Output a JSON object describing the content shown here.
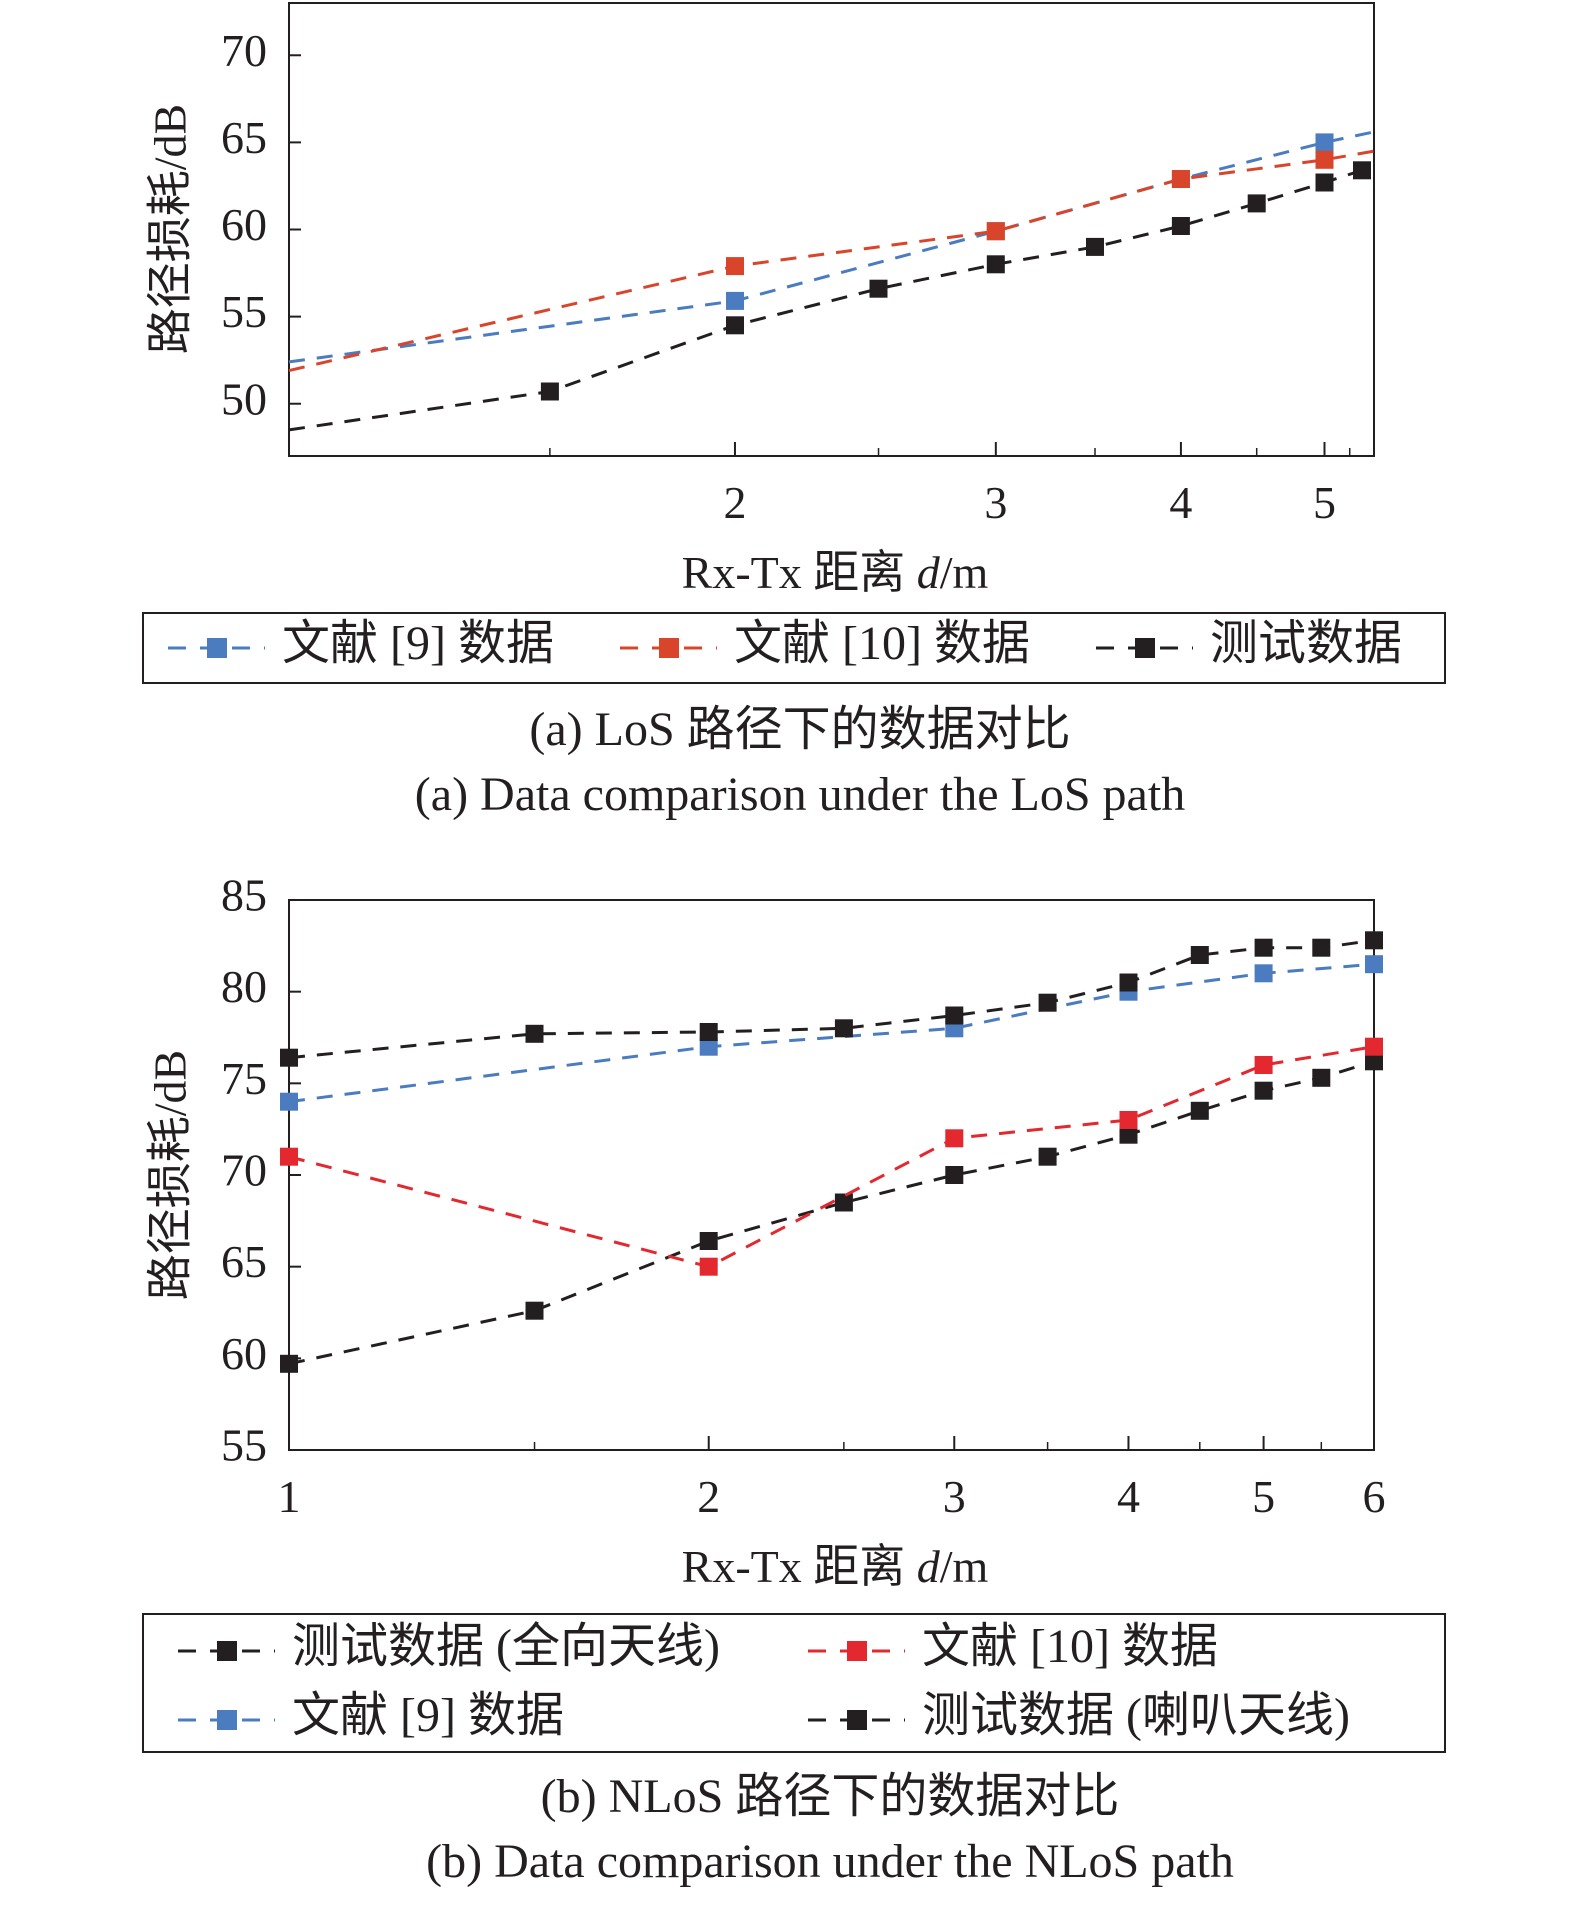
{
  "colors": {
    "blue": "#4a7cbf",
    "orange": "#d9452b",
    "red": "#e3282f",
    "black": "#231f20"
  },
  "chart_data": [
    {
      "type": "line",
      "x_scale": "log",
      "xlim": [
        1,
        5.4
      ],
      "ylim": [
        47,
        73
      ],
      "x_ticks": [
        2,
        3,
        4,
        5
      ],
      "y_ticks": [
        50,
        55,
        60,
        65,
        70
      ],
      "xlabel": {
        "prefix": "Rx-Tx 距离 ",
        "var": "d",
        "suffix": "/m"
      },
      "ylabel": "路径损耗/dB",
      "caption_cn": "(a) LoS 路径下的数据对比",
      "caption_en": "(a) Data comparison under the LoS path",
      "legend": [
        "文献 [9] 数据",
        "文献 [10] 数据",
        "测试数据"
      ],
      "series": [
        {
          "name": "文献 [9] 数据",
          "color": "#4a7cbf",
          "line": [
            [
              1,
              52.4
            ],
            [
              2,
              55.9
            ],
            [
              3,
              59.9
            ],
            [
              4,
              62.9
            ],
            [
              5,
              65.0
            ],
            [
              5.4,
              65.6
            ]
          ],
          "markers": [
            [
              2,
              55.9
            ],
            [
              3,
              59.9
            ],
            [
              4,
              62.9
            ],
            [
              5,
              65.0
            ]
          ]
        },
        {
          "name": "文献 [10] 数据",
          "color": "#d9452b",
          "line": [
            [
              1,
              51.9
            ],
            [
              2,
              57.9
            ],
            [
              3,
              59.9
            ],
            [
              4,
              62.9
            ],
            [
              5,
              64.0
            ],
            [
              5.4,
              64.5
            ]
          ],
          "markers": [
            [
              2,
              57.9
            ],
            [
              3,
              59.9
            ],
            [
              4,
              62.9
            ],
            [
              5,
              64.0
            ]
          ]
        },
        {
          "name": "测试数据",
          "color": "#231f20",
          "line": [
            [
              1,
              48.5
            ],
            [
              1.5,
              50.7
            ],
            [
              2,
              54.5
            ],
            [
              2.5,
              56.6
            ],
            [
              3,
              58.0
            ],
            [
              3.5,
              59.0
            ],
            [
              4,
              60.2
            ],
            [
              4.5,
              61.5
            ],
            [
              5,
              62.7
            ],
            [
              5.3,
              63.4
            ],
            [
              5.4,
              63.6
            ]
          ],
          "markers": [
            [
              1.5,
              50.7
            ],
            [
              2,
              54.5
            ],
            [
              2.5,
              56.6
            ],
            [
              3,
              58.0
            ],
            [
              3.5,
              59.0
            ],
            [
              4,
              60.2
            ],
            [
              4.5,
              61.5
            ],
            [
              5,
              62.7
            ],
            [
              5.3,
              63.4
            ]
          ]
        }
      ]
    },
    {
      "type": "line",
      "x_scale": "log",
      "xlim": [
        1,
        6
      ],
      "ylim": [
        55,
        85
      ],
      "x_ticks": [
        1,
        2,
        3,
        4,
        5,
        6
      ],
      "y_ticks": [
        55,
        60,
        65,
        70,
        75,
        80,
        85
      ],
      "xlabel": {
        "prefix": "Rx-Tx 距离 ",
        "var": "d",
        "suffix": "/m"
      },
      "ylabel": "路径损耗/dB",
      "caption_cn": "(b) NLoS 路径下的数据对比",
      "caption_en": "(b) Data comparison under the NLoS path",
      "legend": [
        "测试数据 (全向天线)",
        "文献 [10] 数据",
        "文献 [9] 数据",
        "测试数据 (喇叭天线)"
      ],
      "series": [
        {
          "name": "测试数据 (全向天线)",
          "color": "#231f20",
          "line": [
            [
              1,
              59.7
            ],
            [
              1.5,
              62.6
            ],
            [
              2,
              66.4
            ],
            [
              2.5,
              68.5
            ],
            [
              3,
              70.0
            ],
            [
              3.5,
              71.0
            ],
            [
              4,
              72.2
            ],
            [
              4.5,
              73.5
            ],
            [
              5,
              74.6
            ],
            [
              5.5,
              75.3
            ],
            [
              6,
              76.2
            ]
          ],
          "markers": [
            [
              1,
              59.7
            ],
            [
              1.5,
              62.6
            ],
            [
              2,
              66.4
            ],
            [
              2.5,
              68.5
            ],
            [
              3,
              70.0
            ],
            [
              3.5,
              71.0
            ],
            [
              4,
              72.2
            ],
            [
              4.5,
              73.5
            ],
            [
              5,
              74.6
            ],
            [
              5.5,
              75.3
            ],
            [
              6,
              76.2
            ]
          ]
        },
        {
          "name": "文献 [10] 数据",
          "color": "#e3282f",
          "line": [
            [
              1,
              71.0
            ],
            [
              2,
              65.0
            ],
            [
              3,
              72.0
            ],
            [
              4,
              73.0
            ],
            [
              5,
              76.0
            ],
            [
              6,
              77.0
            ]
          ],
          "markers": [
            [
              1,
              71.0
            ],
            [
              2,
              65.0
            ],
            [
              3,
              72.0
            ],
            [
              4,
              73.0
            ],
            [
              5,
              76.0
            ],
            [
              6,
              77.0
            ]
          ]
        },
        {
          "name": "文献 [9] 数据",
          "color": "#4a7cbf",
          "line": [
            [
              1,
              74.0
            ],
            [
              2,
              77.0
            ],
            [
              3,
              78.0
            ],
            [
              4,
              80.0
            ],
            [
              5,
              81.0
            ],
            [
              6,
              81.5
            ]
          ],
          "markers": [
            [
              1,
              74.0
            ],
            [
              2,
              77.0
            ],
            [
              3,
              78.0
            ],
            [
              4,
              80.0
            ],
            [
              5,
              81.0
            ],
            [
              6,
              81.5
            ]
          ]
        },
        {
          "name": "测试数据 (喇叭天线)",
          "color": "#231f20",
          "line": [
            [
              1,
              76.4
            ],
            [
              1.5,
              77.7
            ],
            [
              2,
              77.8
            ],
            [
              2.5,
              78.0
            ],
            [
              3,
              78.7
            ],
            [
              3.5,
              79.4
            ],
            [
              4,
              80.5
            ],
            [
              4.5,
              82.0
            ],
            [
              5,
              82.4
            ],
            [
              5.5,
              82.4
            ],
            [
              6,
              82.8
            ]
          ],
          "markers": [
            [
              1,
              76.4
            ],
            [
              1.5,
              77.7
            ],
            [
              2,
              77.8
            ],
            [
              2.5,
              78.0
            ],
            [
              3,
              78.7
            ],
            [
              3.5,
              79.4
            ],
            [
              4,
              80.5
            ],
            [
              4.5,
              82.0
            ],
            [
              5,
              82.4
            ],
            [
              5.5,
              82.4
            ],
            [
              6,
              82.8
            ]
          ]
        }
      ]
    }
  ]
}
